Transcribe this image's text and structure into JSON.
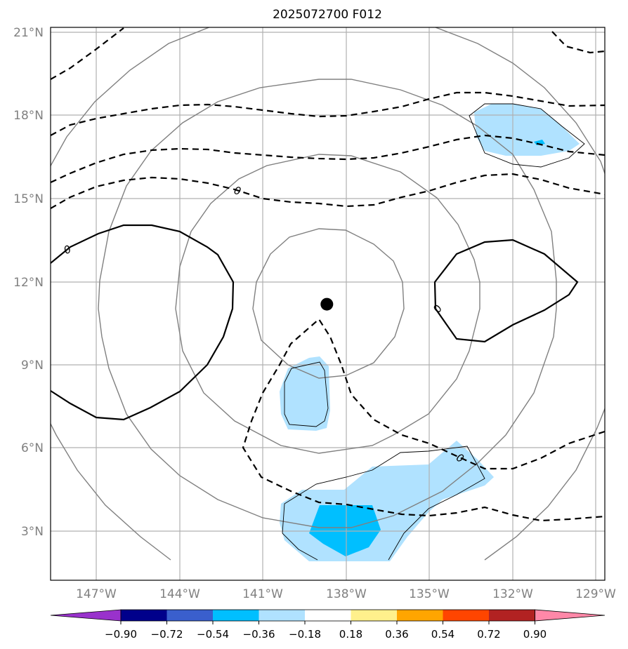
{
  "title": "2025072700 F012",
  "map": {
    "lat_labels": [
      "21°N",
      "18°N",
      "15°N",
      "12°N",
      "9°N",
      "6°N",
      "3°N"
    ],
    "lon_labels": [
      "147°W",
      "144°W",
      "141°W",
      "138°W",
      "135°W",
      "132°W",
      "129°W"
    ],
    "storm_center": {
      "lon": -138.7,
      "lat": 11.2
    },
    "contour_labels": [
      "0",
      "0",
      "0",
      "0"
    ]
  },
  "colorbar": {
    "ticks": [
      "−0.90",
      "−0.72",
      "−0.54",
      "−0.36",
      "−0.18",
      "0.18",
      "0.36",
      "0.54",
      "0.72",
      "0.90"
    ],
    "colors": [
      "#9932cc",
      "#00008b",
      "#3a5fcd",
      "#00bfff",
      "#b0e2ff",
      "#ffffff",
      "#fff08c",
      "#ffa500",
      "#ff4500",
      "#b22222",
      "#ff88a8"
    ]
  }
}
